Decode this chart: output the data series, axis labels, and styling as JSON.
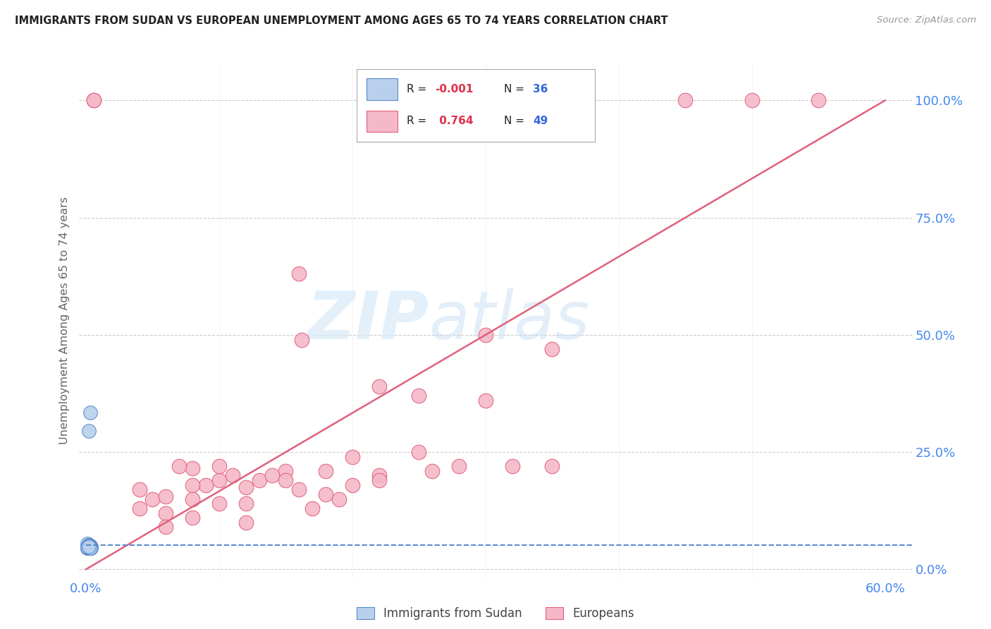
{
  "title": "IMMIGRANTS FROM SUDAN VS EUROPEAN UNEMPLOYMENT AMONG AGES 65 TO 74 YEARS CORRELATION CHART",
  "source": "Source: ZipAtlas.com",
  "ylabel": "Unemployment Among Ages 65 to 74 years",
  "xlim": [
    -0.005,
    0.62
  ],
  "ylim": [
    -0.02,
    1.08
  ],
  "xticks": [
    0.0,
    0.1,
    0.2,
    0.3,
    0.4,
    0.5,
    0.6
  ],
  "xticklabels": [
    "0.0%",
    "",
    "",
    "",
    "",
    "",
    "60.0%"
  ],
  "yticks": [
    0.0,
    0.25,
    0.5,
    0.75,
    1.0
  ],
  "yticklabels": [
    "0.0%",
    "25.0%",
    "50.0%",
    "75.0%",
    "100.0%"
  ],
  "background_color": "#ffffff",
  "grid_color": "#cccccc",
  "watermark_zip": "ZIP",
  "watermark_atlas": "atlas",
  "series1_color": "#b8d0ec",
  "series2_color": "#f5b8c8",
  "regression1_color": "#5588cc",
  "regression2_color": "#e0607a",
  "series1_label": "Immigrants from Sudan",
  "series2_label": "Europeans",
  "blue_x": [
    0.003,
    0.002,
    0.001,
    0.003,
    0.004,
    0.002,
    0.003,
    0.002,
    0.004,
    0.003,
    0.002,
    0.001,
    0.003,
    0.002,
    0.003,
    0.002,
    0.001,
    0.002,
    0.003,
    0.002,
    0.003,
    0.001,
    0.002,
    0.003,
    0.002,
    0.001,
    0.002,
    0.003,
    0.002,
    0.001,
    0.002,
    0.003,
    0.002,
    0.001,
    0.003,
    0.002
  ],
  "blue_y": [
    0.335,
    0.295,
    0.055,
    0.05,
    0.045,
    0.05,
    0.048,
    0.052,
    0.047,
    0.05,
    0.048,
    0.046,
    0.045,
    0.05,
    0.047,
    0.049,
    0.046,
    0.05,
    0.048,
    0.052,
    0.047,
    0.045,
    0.048,
    0.046,
    0.05,
    0.047,
    0.048,
    0.046,
    0.05,
    0.047,
    0.048,
    0.046,
    0.05,
    0.047,
    0.046,
    0.048
  ],
  "pink_x": [
    0.16,
    0.162,
    0.08,
    0.1,
    0.12,
    0.05,
    0.07,
    0.09,
    0.11,
    0.13,
    0.15,
    0.17,
    0.04,
    0.06,
    0.08,
    0.2,
    0.22,
    0.18,
    0.14,
    0.1,
    0.25,
    0.28,
    0.3,
    0.35,
    0.22,
    0.26,
    0.32,
    0.2,
    0.15,
    0.18,
    0.12,
    0.08,
    0.06,
    0.04,
    0.16,
    0.19,
    0.22,
    0.25,
    0.45,
    0.5,
    0.55,
    0.1,
    0.08,
    0.06,
    0.12,
    0.35,
    0.3,
    0.006,
    0.006
  ],
  "pink_y": [
    0.63,
    0.49,
    0.215,
    0.19,
    0.175,
    0.15,
    0.22,
    0.18,
    0.2,
    0.19,
    0.21,
    0.13,
    0.17,
    0.155,
    0.18,
    0.24,
    0.2,
    0.21,
    0.2,
    0.22,
    0.25,
    0.22,
    0.5,
    0.47,
    0.19,
    0.21,
    0.22,
    0.18,
    0.19,
    0.16,
    0.14,
    0.15,
    0.12,
    0.13,
    0.17,
    0.15,
    0.39,
    0.37,
    1.0,
    1.0,
    1.0,
    0.14,
    0.11,
    0.09,
    0.1,
    0.22,
    0.36,
    1.0,
    1.0
  ],
  "pink_line_x": [
    0.0,
    0.6
  ],
  "pink_line_y": [
    0.0,
    1.0
  ],
  "blue_line_y": 0.052
}
